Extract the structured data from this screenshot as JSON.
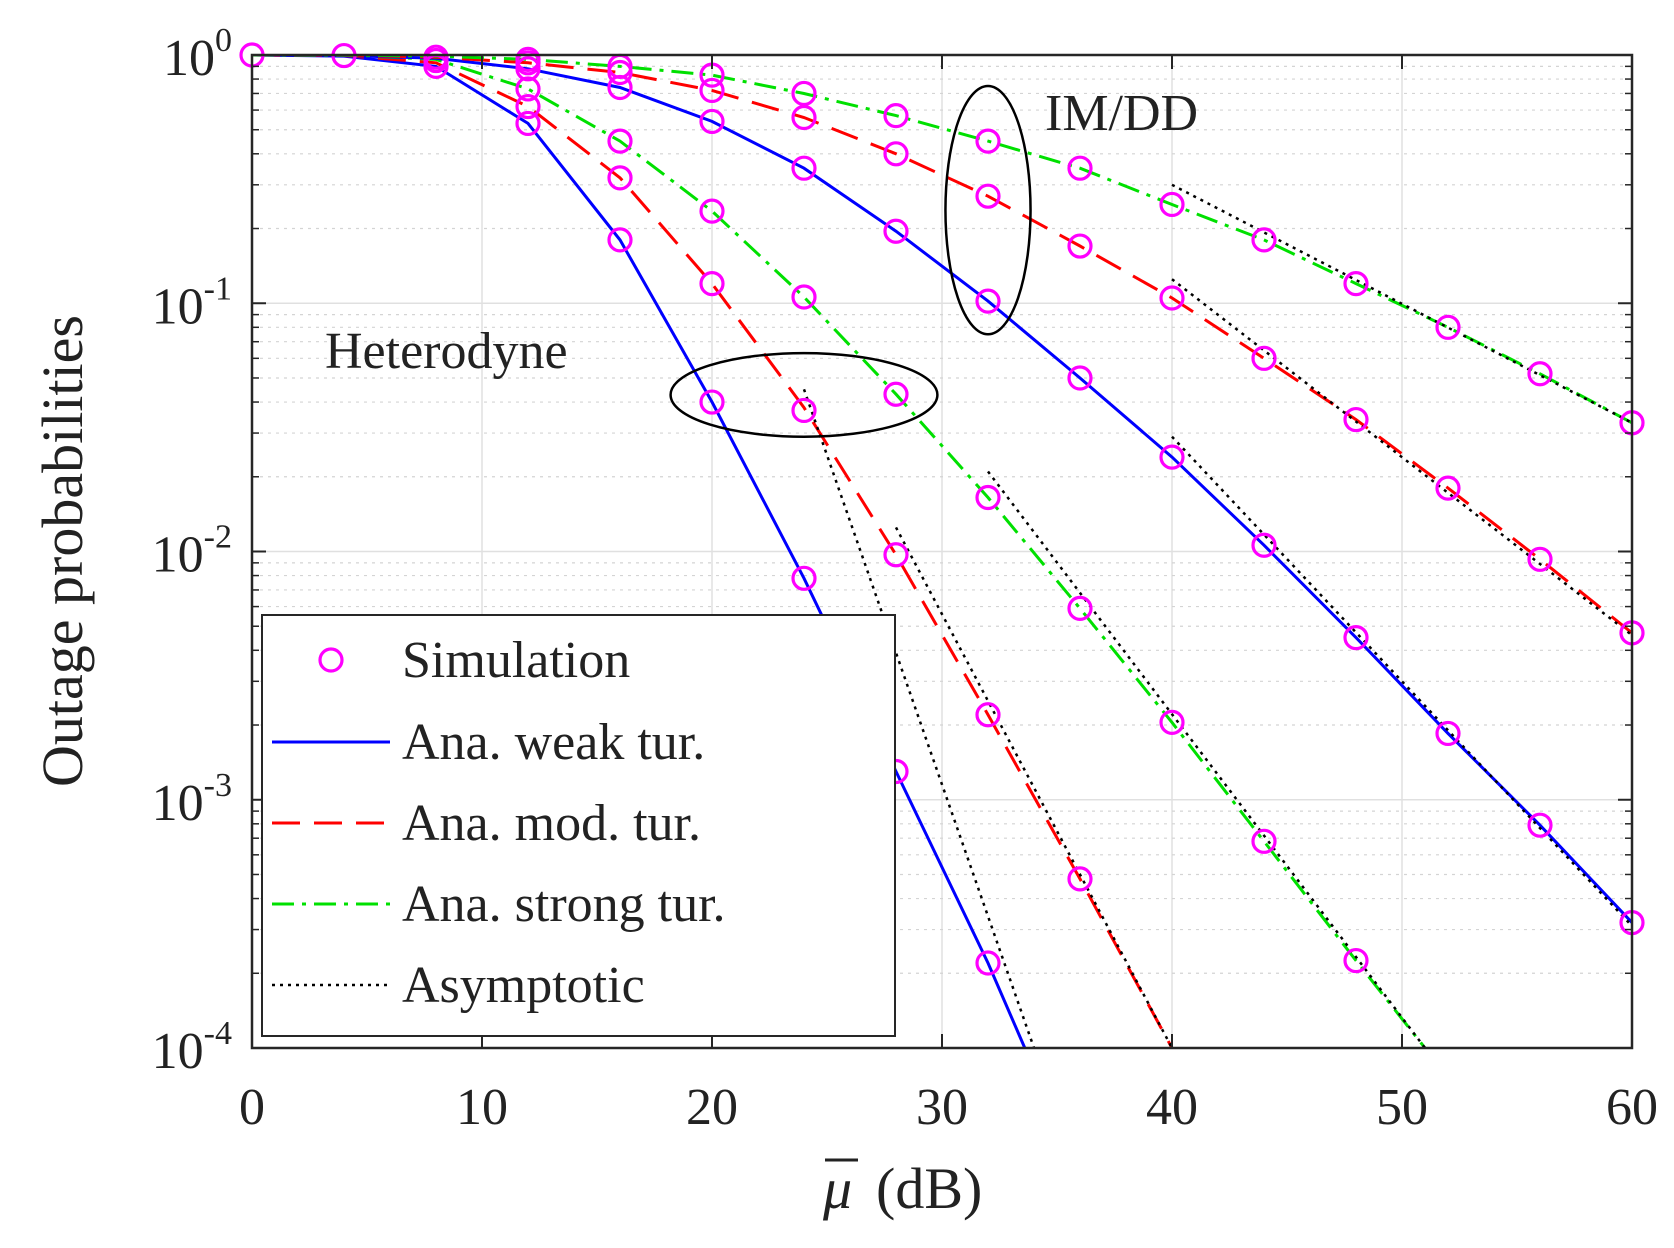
{
  "chart_data": {
    "type": "line",
    "yscale": "log",
    "xlim": [
      0,
      60
    ],
    "ylim": [
      0.0001,
      1
    ],
    "grid": true,
    "legend_position": "bottom-left",
    "xlabel": "μ̅ (dB)",
    "xlabel_symbol": "μ",
    "xlabel_unit": "(dB)",
    "ylabel": "Outage probabilities",
    "x_ticks": [
      "0",
      "10",
      "20",
      "30",
      "40",
      "50",
      "60"
    ],
    "y_ticks": [
      {
        "base": "10",
        "exp": "0"
      },
      {
        "base": "10",
        "exp": "-1"
      },
      {
        "base": "10",
        "exp": "-2"
      },
      {
        "base": "10",
        "exp": "-3"
      },
      {
        "base": "10",
        "exp": "-4"
      }
    ],
    "legend": [
      {
        "label": "Simulation",
        "style": "marker"
      },
      {
        "label": "Ana. weak tur.",
        "style": "solid"
      },
      {
        "label": "Ana. mod. tur.",
        "style": "dashed"
      },
      {
        "label": "Ana. strong tur.",
        "style": "dashdot"
      },
      {
        "label": "Asymptotic",
        "style": "dotted"
      }
    ],
    "annotations": [
      "IM/DD",
      "Heterodyne"
    ],
    "colors": {
      "weak": "#0000ff",
      "moderate": "#ff0000",
      "strong": "#00e000",
      "asymptotic": "#000000",
      "simulation": "#ff00ff",
      "axis": "#262626",
      "grid": "#e0e0e0"
    },
    "series": [
      {
        "name": "Heterodyne weak tur.",
        "group": "weak",
        "scheme": "Heterodyne",
        "x": [
          0,
          4,
          8,
          12,
          16,
          20,
          24,
          25,
          28,
          32,
          33.6
        ],
        "y": [
          1.0,
          0.99,
          0.9,
          0.53,
          0.18,
          0.04,
          0.0078,
          0.005,
          0.0013,
          0.00022,
          0.0001
        ]
      },
      {
        "name": "Heterodyne mod. tur.",
        "group": "moderate",
        "scheme": "Heterodyne",
        "x": [
          0,
          4,
          8,
          12,
          16,
          20,
          24,
          28,
          32,
          36,
          40
        ],
        "y": [
          1.0,
          0.995,
          0.93,
          0.62,
          0.32,
          0.12,
          0.038,
          0.0097,
          0.0022,
          0.00048,
          0.0001
        ]
      },
      {
        "name": "Heterodyne strong tur.",
        "group": "strong",
        "scheme": "Heterodyne",
        "x": [
          0,
          4,
          8,
          12,
          16,
          20,
          24,
          28,
          32,
          36,
          40,
          44,
          48,
          51
        ],
        "y": [
          1.0,
          0.998,
          0.96,
          0.73,
          0.45,
          0.235,
          0.106,
          0.043,
          0.0165,
          0.0059,
          0.00205,
          0.00068,
          0.000225,
          0.0001
        ]
      },
      {
        "name": "IM/DD weak tur.",
        "group": "weak",
        "scheme": "IM/DD",
        "x": [
          0,
          4,
          8,
          12,
          16,
          20,
          24,
          28,
          32,
          36,
          40,
          44,
          48,
          52,
          56,
          60
        ],
        "y": [
          1.0,
          0.995,
          0.97,
          0.88,
          0.74,
          0.54,
          0.35,
          0.195,
          0.102,
          0.05,
          0.024,
          0.0106,
          0.0045,
          0.00185,
          0.00079,
          0.00032
        ]
      },
      {
        "name": "IM/DD mod. tur.",
        "group": "moderate",
        "scheme": "IM/DD",
        "x": [
          0,
          4,
          8,
          12,
          16,
          20,
          24,
          28,
          32,
          36,
          40,
          44,
          48,
          52,
          56,
          60
        ],
        "y": [
          1.0,
          0.998,
          0.98,
          0.93,
          0.85,
          0.72,
          0.56,
          0.4,
          0.27,
          0.17,
          0.105,
          0.06,
          0.034,
          0.018,
          0.0093,
          0.0047
        ]
      },
      {
        "name": "IM/DD strong tur.",
        "group": "strong",
        "scheme": "IM/DD",
        "x": [
          0,
          4,
          8,
          12,
          16,
          20,
          24,
          28,
          32,
          36,
          40,
          44,
          48,
          52,
          56,
          60
        ],
        "y": [
          1.0,
          0.999,
          0.99,
          0.96,
          0.9,
          0.83,
          0.7,
          0.57,
          0.45,
          0.35,
          0.25,
          0.18,
          0.12,
          0.08,
          0.052,
          0.033
        ]
      },
      {
        "name": "Simulation",
        "group": "simulation",
        "marker": "circle",
        "points": [
          [
            0,
            1.0
          ],
          [
            4,
            0.995
          ],
          [
            8,
            0.9
          ],
          [
            8,
            0.95
          ],
          [
            8,
            0.98
          ],
          [
            12,
            0.53
          ],
          [
            12,
            0.62
          ],
          [
            12,
            0.73
          ],
          [
            12,
            0.88
          ],
          [
            12,
            0.93
          ],
          [
            12,
            0.96
          ],
          [
            16,
            0.18
          ],
          [
            16,
            0.32
          ],
          [
            16,
            0.45
          ],
          [
            16,
            0.74
          ],
          [
            16,
            0.85
          ],
          [
            16,
            0.9
          ],
          [
            20,
            0.04
          ],
          [
            20,
            0.12
          ],
          [
            20,
            0.235
          ],
          [
            20,
            0.54
          ],
          [
            20,
            0.72
          ],
          [
            20,
            0.83
          ],
          [
            24,
            0.0078
          ],
          [
            24,
            0.037
          ],
          [
            24,
            0.106
          ],
          [
            24,
            0.35
          ],
          [
            24,
            0.56
          ],
          [
            24,
            0.7
          ],
          [
            28,
            0.0013
          ],
          [
            28,
            0.0097
          ],
          [
            28,
            0.043
          ],
          [
            28,
            0.195
          ],
          [
            28,
            0.4
          ],
          [
            28,
            0.57
          ],
          [
            32,
            0.00022
          ],
          [
            32,
            0.0022
          ],
          [
            32,
            0.0165
          ],
          [
            32,
            0.102
          ],
          [
            32,
            0.27
          ],
          [
            32,
            0.45
          ],
          [
            36,
            0.00048
          ],
          [
            36,
            0.0059
          ],
          [
            36,
            0.05
          ],
          [
            36,
            0.17
          ],
          [
            36,
            0.35
          ],
          [
            40,
            0.00205
          ],
          [
            40,
            0.024
          ],
          [
            40,
            0.105
          ],
          [
            40,
            0.25
          ],
          [
            44,
            0.00068
          ],
          [
            44,
            0.0106
          ],
          [
            44,
            0.06
          ],
          [
            44,
            0.18
          ],
          [
            48,
            0.000225
          ],
          [
            48,
            0.0045
          ],
          [
            48,
            0.034
          ],
          [
            48,
            0.12
          ],
          [
            52,
            0.00185
          ],
          [
            52,
            0.018
          ],
          [
            52,
            0.08
          ],
          [
            56,
            0.00079
          ],
          [
            56,
            0.0093
          ],
          [
            56,
            0.052
          ],
          [
            60,
            0.00032
          ],
          [
            60,
            0.0047
          ],
          [
            60,
            0.033
          ]
        ]
      },
      {
        "name": "Asymptotic",
        "group": "asymptotic",
        "style": "dotted",
        "segments": [
          {
            "x": [
              24,
              34
            ],
            "y": [
              0.045,
              0.0001
            ]
          },
          {
            "x": [
              28,
              40
            ],
            "y": [
              0.0125,
              0.0001
            ]
          },
          {
            "x": [
              32,
              51
            ],
            "y": [
              0.021,
              0.0001
            ]
          },
          {
            "x": [
              40,
              60
            ],
            "y": [
              0.029,
              0.00031
            ]
          },
          {
            "x": [
              40,
              60
            ],
            "y": [
              0.125,
              0.0046
            ]
          },
          {
            "x": [
              40,
              60
            ],
            "y": [
              0.3,
              0.033
            ]
          }
        ]
      }
    ],
    "ellipses": [
      {
        "label": "IM/DD",
        "cx": 32,
        "cy": 0.22,
        "rx_db": 1.85,
        "y_top": 0.75,
        "y_bottom": 0.075
      },
      {
        "label": "Heterodyne",
        "cx": 24,
        "cy": 0.042,
        "rx_db": 5.8,
        "y_top": 0.063,
        "y_bottom": 0.029
      }
    ]
  }
}
